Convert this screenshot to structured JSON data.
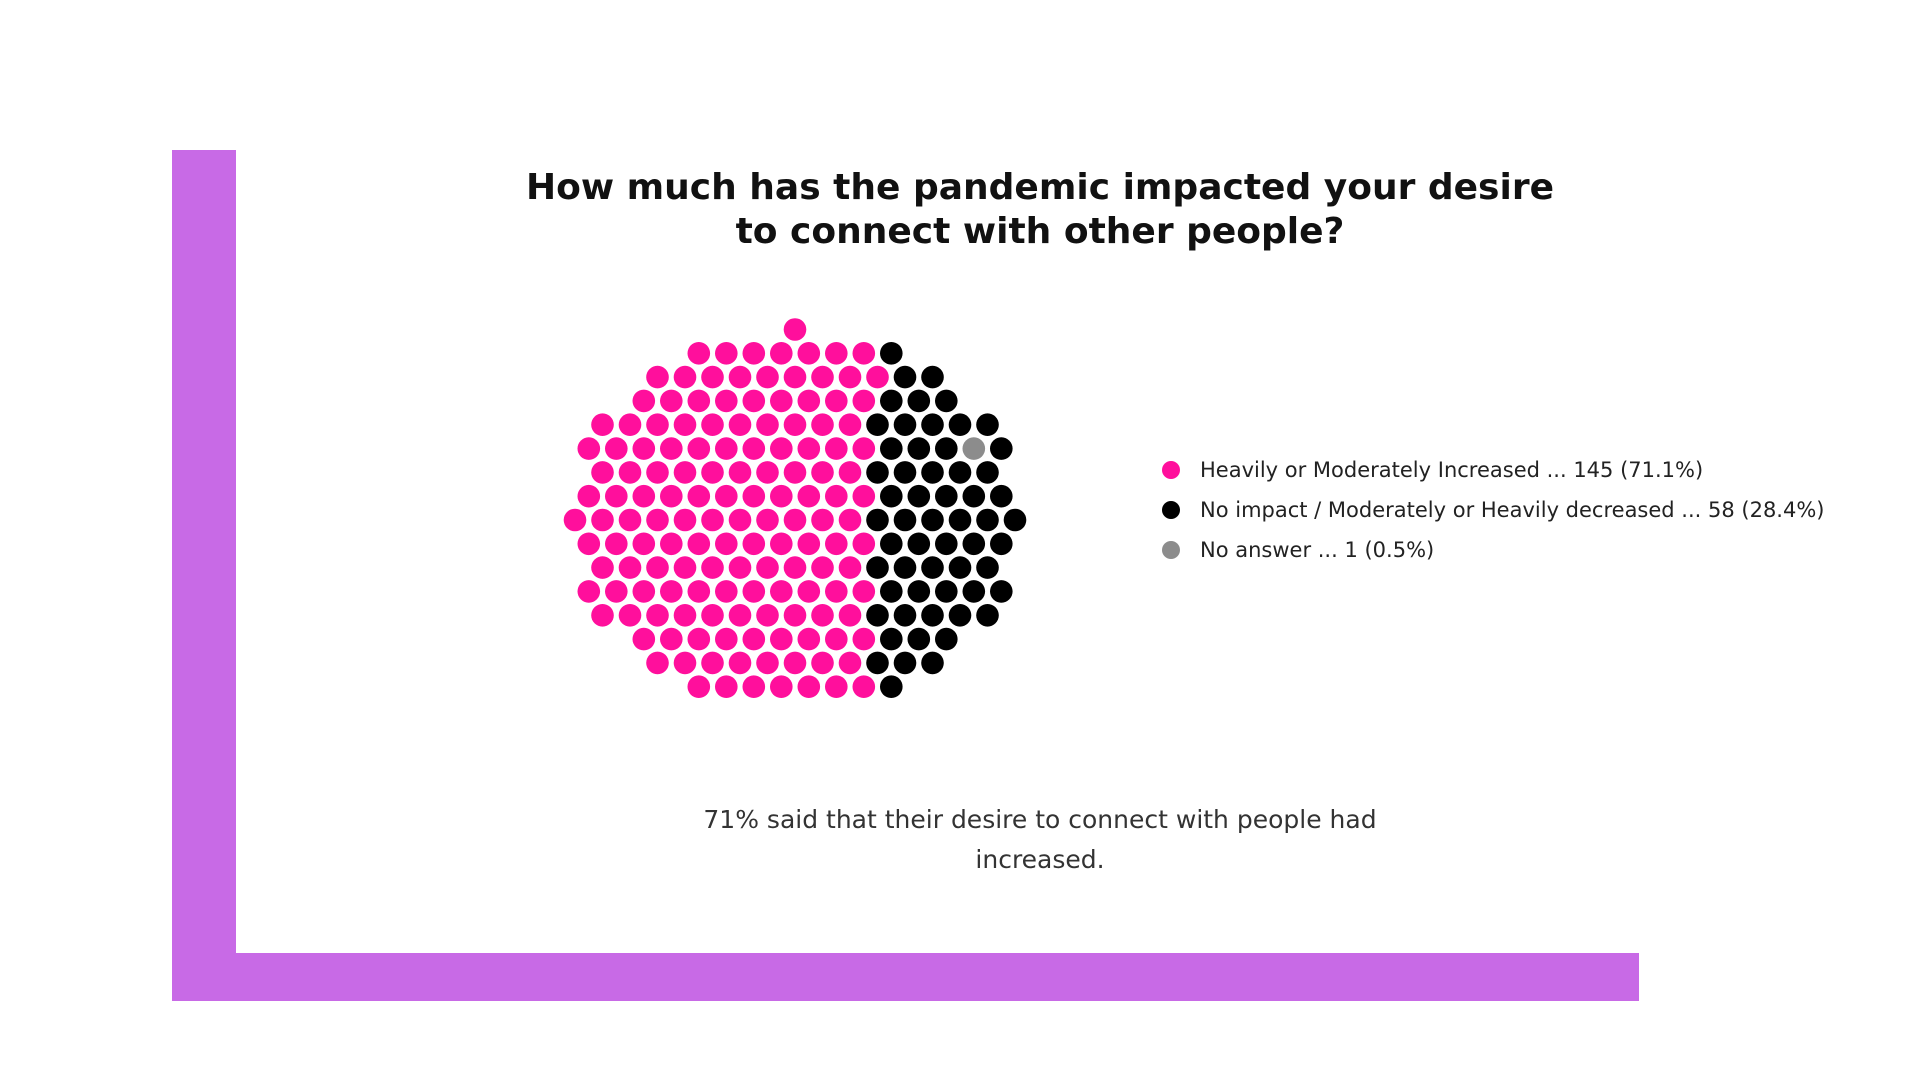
{
  "colors": {
    "frame": "#c86ae6",
    "increased": "#ff0f9c",
    "decreased": "#000000",
    "no_answer": "#8c8c8c"
  },
  "chart_data": {
    "type": "dot-cluster",
    "title_lines": [
      "How much has the pandemic impacted your desire",
      "to connect with other people?"
    ],
    "categories": [
      "Heavily or Moderately Increased",
      "No impact / Moderately or Heavily decreased",
      "No answer"
    ],
    "values": [
      145,
      58,
      1
    ],
    "percents": [
      71.1,
      28.4,
      0.5
    ],
    "legend": [
      {
        "label": "Heavily or Moderately Increased ... 145 (71.1%)",
        "color": "#ff0f9c"
      },
      {
        "label": "No impact / Moderately or Heavily decreased ... 58 (28.4%)",
        "color": "#000000"
      },
      {
        "label": "No answer ... 1 (0.5%)",
        "color": "#8c8c8c"
      }
    ],
    "legend_placement": "right"
  },
  "caption_lines": [
    "71% said that their desire to connect with people had",
    "increased."
  ]
}
